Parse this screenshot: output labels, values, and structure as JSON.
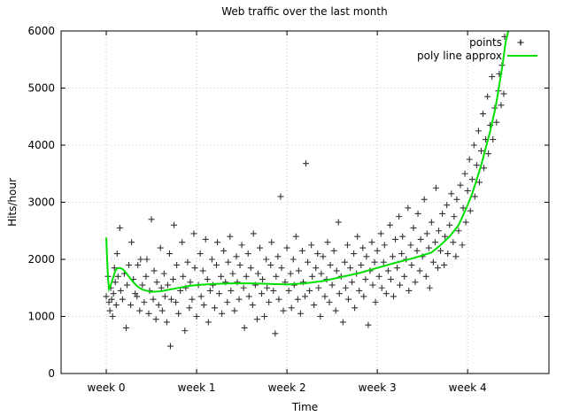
{
  "chart_data": {
    "type": "scatter",
    "title": "Web traffic over the last month",
    "xlabel": "Time",
    "ylabel": "Hits/hour",
    "xlim": [
      -0.5,
      4.9
    ],
    "ylim": [
      0,
      6000
    ],
    "grid": true,
    "legend_position": "top-right",
    "x_ticks": [
      {
        "value": 0,
        "label": "week 0"
      },
      {
        "value": 1,
        "label": "week 1"
      },
      {
        "value": 2,
        "label": "week 2"
      },
      {
        "value": 3,
        "label": "week 3"
      },
      {
        "value": 4,
        "label": "week 4"
      }
    ],
    "y_ticks": [
      {
        "value": 0,
        "label": "0"
      },
      {
        "value": 1000,
        "label": "1000"
      },
      {
        "value": 2000,
        "label": "2000"
      },
      {
        "value": 3000,
        "label": "3000"
      },
      {
        "value": 4000,
        "label": "4000"
      },
      {
        "value": 5000,
        "label": "5000"
      },
      {
        "value": 6000,
        "label": "6000"
      }
    ],
    "series": [
      {
        "name": "points",
        "kind": "scatter",
        "marker": "plus",
        "color": "#000000",
        "points": [
          [
            0.0,
            1350
          ],
          [
            0.02,
            1700
          ],
          [
            0.03,
            1250
          ],
          [
            0.04,
            1100
          ],
          [
            0.05,
            1500
          ],
          [
            0.06,
            1300
          ],
          [
            0.07,
            1000
          ],
          [
            0.08,
            1400
          ],
          [
            0.09,
            1850
          ],
          [
            0.1,
            1600
          ],
          [
            0.11,
            1200
          ],
          [
            0.12,
            2100
          ],
          [
            0.13,
            1700
          ],
          [
            0.15,
            2550
          ],
          [
            0.16,
            1450
          ],
          [
            0.18,
            1300
          ],
          [
            0.2,
            1750
          ],
          [
            0.22,
            800
          ],
          [
            0.23,
            1550
          ],
          [
            0.25,
            1900
          ],
          [
            0.27,
            1200
          ],
          [
            0.28,
            2300
          ],
          [
            0.3,
            1650
          ],
          [
            0.32,
            1400
          ],
          [
            0.34,
            1350
          ],
          [
            0.35,
            1900
          ],
          [
            0.37,
            1100
          ],
          [
            0.38,
            2000
          ],
          [
            0.4,
            1550
          ],
          [
            0.42,
            1250
          ],
          [
            0.44,
            1700
          ],
          [
            0.45,
            2000
          ],
          [
            0.47,
            1050
          ],
          [
            0.48,
            1450
          ],
          [
            0.5,
            2700
          ],
          [
            0.52,
            1300
          ],
          [
            0.53,
            1800
          ],
          [
            0.55,
            950
          ],
          [
            0.56,
            1600
          ],
          [
            0.58,
            1200
          ],
          [
            0.6,
            2200
          ],
          [
            0.61,
            1500
          ],
          [
            0.62,
            1100
          ],
          [
            0.64,
            1750
          ],
          [
            0.65,
            1350
          ],
          [
            0.67,
            900
          ],
          [
            0.68,
            1550
          ],
          [
            0.7,
            2100
          ],
          [
            0.71,
            480
          ],
          [
            0.72,
            1300
          ],
          [
            0.74,
            1650
          ],
          [
            0.75,
            2600
          ],
          [
            0.77,
            1250
          ],
          [
            0.78,
            1900
          ],
          [
            0.8,
            1050
          ],
          [
            0.82,
            1450
          ],
          [
            0.84,
            2300
          ],
          [
            0.85,
            1700
          ],
          [
            0.87,
            750
          ],
          [
            0.88,
            1500
          ],
          [
            0.9,
            1950
          ],
          [
            0.92,
            1150
          ],
          [
            0.93,
            1600
          ],
          [
            0.95,
            1300
          ],
          [
            0.97,
            2450
          ],
          [
            0.98,
            1850
          ],
          [
            1.0,
            1000
          ],
          [
            1.02,
            1550
          ],
          [
            1.04,
            2100
          ],
          [
            1.05,
            1350
          ],
          [
            1.07,
            1800
          ],
          [
            1.08,
            1200
          ],
          [
            1.1,
            2350
          ],
          [
            1.12,
            1650
          ],
          [
            1.13,
            900
          ],
          [
            1.15,
            1450
          ],
          [
            1.17,
            2000
          ],
          [
            1.18,
            1550
          ],
          [
            1.2,
            1150
          ],
          [
            1.22,
            1900
          ],
          [
            1.23,
            2300
          ],
          [
            1.25,
            1400
          ],
          [
            1.27,
            1700
          ],
          [
            1.28,
            1050
          ],
          [
            1.3,
            2150
          ],
          [
            1.32,
            1600
          ],
          [
            1.34,
            1250
          ],
          [
            1.35,
            1950
          ],
          [
            1.37,
            2400
          ],
          [
            1.38,
            1450
          ],
          [
            1.4,
            1750
          ],
          [
            1.42,
            1100
          ],
          [
            1.44,
            2050
          ],
          [
            1.45,
            1600
          ],
          [
            1.47,
            1300
          ],
          [
            1.48,
            1900
          ],
          [
            1.5,
            2250
          ],
          [
            1.52,
            1500
          ],
          [
            1.53,
            800
          ],
          [
            1.55,
            1700
          ],
          [
            1.57,
            2100
          ],
          [
            1.58,
            1350
          ],
          [
            1.6,
            1850
          ],
          [
            1.62,
            1200
          ],
          [
            1.63,
            2450
          ],
          [
            1.65,
            1550
          ],
          [
            1.67,
            950
          ],
          [
            1.68,
            1750
          ],
          [
            1.7,
            2200
          ],
          [
            1.72,
            1400
          ],
          [
            1.73,
            1650
          ],
          [
            1.75,
            1000
          ],
          [
            1.77,
            2000
          ],
          [
            1.78,
            1500
          ],
          [
            1.8,
            1250
          ],
          [
            1.82,
            1900
          ],
          [
            1.83,
            2300
          ],
          [
            1.85,
            1450
          ],
          [
            1.87,
            700
          ],
          [
            1.88,
            1700
          ],
          [
            1.9,
            2050
          ],
          [
            1.91,
            1300
          ],
          [
            1.93,
            3100
          ],
          [
            1.94,
            1850
          ],
          [
            1.96,
            1100
          ],
          [
            1.98,
            1600
          ],
          [
            2.0,
            2200
          ],
          [
            2.02,
            1450
          ],
          [
            2.04,
            1750
          ],
          [
            2.05,
            1150
          ],
          [
            2.07,
            2000
          ],
          [
            2.08,
            1550
          ],
          [
            2.1,
            2400
          ],
          [
            2.12,
            1300
          ],
          [
            2.13,
            1800
          ],
          [
            2.15,
            1050
          ],
          [
            2.17,
            2150
          ],
          [
            2.18,
            1600
          ],
          [
            2.2,
            1350
          ],
          [
            2.21,
            3680
          ],
          [
            2.23,
            1950
          ],
          [
            2.25,
            1450
          ],
          [
            2.27,
            2250
          ],
          [
            2.28,
            1700
          ],
          [
            2.3,
            1200
          ],
          [
            2.32,
            1850
          ],
          [
            2.34,
            2100
          ],
          [
            2.35,
            1500
          ],
          [
            2.37,
            1000
          ],
          [
            2.38,
            1750
          ],
          [
            2.4,
            2050
          ],
          [
            2.42,
            1350
          ],
          [
            2.44,
            1650
          ],
          [
            2.45,
            2300
          ],
          [
            2.47,
            1250
          ],
          [
            2.48,
            1900
          ],
          [
            2.5,
            1550
          ],
          [
            2.52,
            2150
          ],
          [
            2.54,
            1100
          ],
          [
            2.55,
            1800
          ],
          [
            2.57,
            2650
          ],
          [
            2.58,
            1400
          ],
          [
            2.6,
            1700
          ],
          [
            2.62,
            900
          ],
          [
            2.64,
            1950
          ],
          [
            2.65,
            1500
          ],
          [
            2.67,
            2250
          ],
          [
            2.68,
            1300
          ],
          [
            2.7,
            1850
          ],
          [
            2.72,
            1600
          ],
          [
            2.74,
            2100
          ],
          [
            2.75,
            1150
          ],
          [
            2.77,
            1750
          ],
          [
            2.78,
            2400
          ],
          [
            2.8,
            1450
          ],
          [
            2.82,
            1900
          ],
          [
            2.84,
            2200
          ],
          [
            2.85,
            1350
          ],
          [
            2.87,
            1650
          ],
          [
            2.88,
            2050
          ],
          [
            2.9,
            850
          ],
          [
            2.92,
            1800
          ],
          [
            2.94,
            2300
          ],
          [
            2.95,
            1550
          ],
          [
            2.97,
            1950
          ],
          [
            2.98,
            1250
          ],
          [
            3.0,
            2150
          ],
          [
            3.02,
            1700
          ],
          [
            3.04,
            2450
          ],
          [
            3.05,
            1500
          ],
          [
            3.07,
            1950
          ],
          [
            3.08,
            2250
          ],
          [
            3.1,
            1400
          ],
          [
            3.12,
            1800
          ],
          [
            3.14,
            2600
          ],
          [
            3.15,
            1650
          ],
          [
            3.17,
            2050
          ],
          [
            3.18,
            1350
          ],
          [
            3.2,
            2350
          ],
          [
            3.22,
            1850
          ],
          [
            3.24,
            2750
          ],
          [
            3.25,
            1550
          ],
          [
            3.27,
            2100
          ],
          [
            3.28,
            2400
          ],
          [
            3.3,
            1700
          ],
          [
            3.32,
            2000
          ],
          [
            3.34,
            2900
          ],
          [
            3.35,
            1450
          ],
          [
            3.37,
            2250
          ],
          [
            3.38,
            1900
          ],
          [
            3.4,
            2550
          ],
          [
            3.42,
            1600
          ],
          [
            3.44,
            2150
          ],
          [
            3.45,
            2800
          ],
          [
            3.47,
            1800
          ],
          [
            3.48,
            2350
          ],
          [
            3.5,
            2050
          ],
          [
            3.52,
            3050
          ],
          [
            3.54,
            1700
          ],
          [
            3.55,
            2450
          ],
          [
            3.57,
            2200
          ],
          [
            3.58,
            1500
          ],
          [
            3.6,
            2650
          ],
          [
            3.62,
            1950
          ],
          [
            3.64,
            2300
          ],
          [
            3.65,
            3250
          ],
          [
            3.67,
            1850
          ],
          [
            3.68,
            2500
          ],
          [
            3.7,
            2150
          ],
          [
            3.72,
            2800
          ],
          [
            3.74,
            1900
          ],
          [
            3.75,
            2400
          ],
          [
            3.77,
            2950
          ],
          [
            3.78,
            2100
          ],
          [
            3.8,
            2600
          ],
          [
            3.82,
            3150
          ],
          [
            3.84,
            2300
          ],
          [
            3.85,
            2750
          ],
          [
            3.87,
            2050
          ],
          [
            3.88,
            3050
          ],
          [
            3.9,
            2500
          ],
          [
            3.92,
            3300
          ],
          [
            3.94,
            2250
          ],
          [
            3.95,
            2900
          ],
          [
            3.97,
            3500
          ],
          [
            3.98,
            2650
          ],
          [
            4.0,
            3200
          ],
          [
            4.02,
            3750
          ],
          [
            4.03,
            2850
          ],
          [
            4.05,
            3400
          ],
          [
            4.07,
            4000
          ],
          [
            4.08,
            3100
          ],
          [
            4.1,
            3650
          ],
          [
            4.12,
            4250
          ],
          [
            4.13,
            3350
          ],
          [
            4.15,
            3900
          ],
          [
            4.17,
            4550
          ],
          [
            4.18,
            3600
          ],
          [
            4.2,
            4100
          ],
          [
            4.22,
            4850
          ],
          [
            4.23,
            3850
          ],
          [
            4.25,
            4350
          ],
          [
            4.27,
            5200
          ],
          [
            4.28,
            4100
          ],
          [
            4.3,
            4650
          ],
          [
            4.32,
            4400
          ],
          [
            4.34,
            4950
          ],
          [
            4.35,
            5250
          ],
          [
            4.37,
            4700
          ],
          [
            4.38,
            5400
          ],
          [
            4.4,
            4900
          ],
          [
            4.41,
            5900
          ]
        ]
      },
      {
        "name": "poly line approx",
        "kind": "line",
        "color": "#00e000",
        "x": [
          0.0,
          0.01,
          0.02,
          0.03,
          0.05,
          0.08,
          0.1,
          0.12,
          0.15,
          0.18,
          0.2,
          0.25,
          0.3,
          0.35,
          0.4,
          0.5,
          0.6,
          0.7,
          0.8,
          0.9,
          1.0,
          1.2,
          1.4,
          1.6,
          1.8,
          2.0,
          2.2,
          2.4,
          2.6,
          2.8,
          3.0,
          3.2,
          3.4,
          3.6,
          3.7,
          3.8,
          3.9,
          4.0,
          4.05,
          4.1,
          4.15,
          4.2,
          4.25,
          4.3,
          4.33,
          4.36,
          4.39,
          4.42,
          4.45
        ],
        "y": [
          2380,
          2000,
          1650,
          1480,
          1550,
          1700,
          1800,
          1840,
          1850,
          1830,
          1800,
          1700,
          1600,
          1520,
          1470,
          1430,
          1440,
          1470,
          1500,
          1530,
          1550,
          1570,
          1580,
          1580,
          1570,
          1560,
          1580,
          1620,
          1690,
          1760,
          1850,
          1940,
          2020,
          2120,
          2250,
          2400,
          2600,
          2950,
          3150,
          3400,
          3650,
          3950,
          4250,
          4600,
          4850,
          5150,
          5450,
          5800,
          6000
        ]
      }
    ]
  }
}
